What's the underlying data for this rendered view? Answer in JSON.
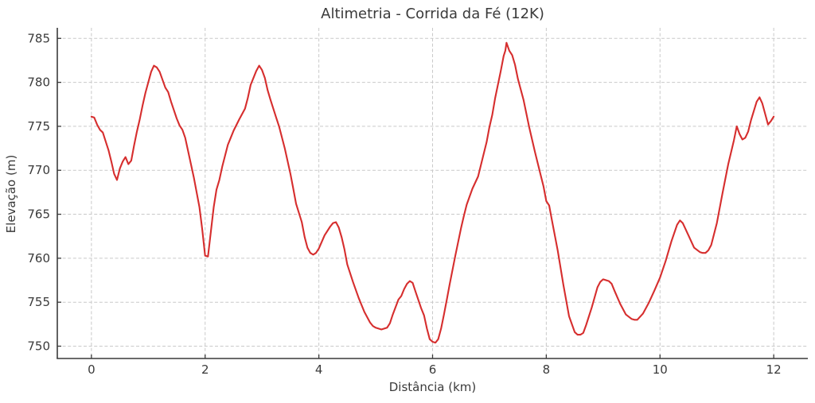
{
  "chart_data": {
    "type": "line",
    "title": "Altimetria - Corrida da Fé (12K)",
    "xlabel": "Distância (km)",
    "ylabel": "Elevação (m)",
    "xlim": [
      -0.6,
      12.6
    ],
    "ylim": [
      748.6,
      786.2
    ],
    "xticks": [
      0,
      2,
      4,
      6,
      8,
      10,
      12
    ],
    "yticks": [
      750,
      755,
      760,
      765,
      770,
      775,
      780,
      785
    ],
    "grid": true,
    "grid_style": "dashed",
    "legend": "none",
    "colors": {
      "line": "#d62e2e",
      "grid": "#c9c9c9",
      "spine": "#3a3a3a",
      "text": "#3a3a3a",
      "background": "#ffffff"
    },
    "series": [
      {
        "name": "elevation-profile",
        "points": [
          [
            0.0,
            776.1
          ],
          [
            0.05,
            776.0
          ],
          [
            0.1,
            775.2
          ],
          [
            0.15,
            774.6
          ],
          [
            0.2,
            774.3
          ],
          [
            0.25,
            773.3
          ],
          [
            0.3,
            772.3
          ],
          [
            0.35,
            771.0
          ],
          [
            0.4,
            769.6
          ],
          [
            0.45,
            768.9
          ],
          [
            0.5,
            770.2
          ],
          [
            0.55,
            771.0
          ],
          [
            0.6,
            771.5
          ],
          [
            0.65,
            770.7
          ],
          [
            0.7,
            771.1
          ],
          [
            0.75,
            772.8
          ],
          [
            0.8,
            774.4
          ],
          [
            0.85,
            775.8
          ],
          [
            0.9,
            777.4
          ],
          [
            0.95,
            778.8
          ],
          [
            1.0,
            780.0
          ],
          [
            1.05,
            781.2
          ],
          [
            1.1,
            781.9
          ],
          [
            1.15,
            781.7
          ],
          [
            1.2,
            781.2
          ],
          [
            1.3,
            779.4
          ],
          [
            1.35,
            778.9
          ],
          [
            1.4,
            777.8
          ],
          [
            1.5,
            775.9
          ],
          [
            1.55,
            775.1
          ],
          [
            1.6,
            774.6
          ],
          [
            1.65,
            773.7
          ],
          [
            1.7,
            772.2
          ],
          [
            1.8,
            769.2
          ],
          [
            1.9,
            765.8
          ],
          [
            1.95,
            763.2
          ],
          [
            2.0,
            760.3
          ],
          [
            2.05,
            760.2
          ],
          [
            2.1,
            763.0
          ],
          [
            2.15,
            765.8
          ],
          [
            2.2,
            767.8
          ],
          [
            2.25,
            768.9
          ],
          [
            2.3,
            770.4
          ],
          [
            2.4,
            772.9
          ],
          [
            2.45,
            773.7
          ],
          [
            2.5,
            774.5
          ],
          [
            2.6,
            775.8
          ],
          [
            2.7,
            777.0
          ],
          [
            2.75,
            778.2
          ],
          [
            2.8,
            779.7
          ],
          [
            2.9,
            781.3
          ],
          [
            2.95,
            781.9
          ],
          [
            3.0,
            781.4
          ],
          [
            3.05,
            780.5
          ],
          [
            3.1,
            779.1
          ],
          [
            3.15,
            778.0
          ],
          [
            3.25,
            776.0
          ],
          [
            3.3,
            775.0
          ],
          [
            3.4,
            772.5
          ],
          [
            3.5,
            769.6
          ],
          [
            3.55,
            767.9
          ],
          [
            3.6,
            766.2
          ],
          [
            3.7,
            764.1
          ],
          [
            3.75,
            762.4
          ],
          [
            3.8,
            761.2
          ],
          [
            3.85,
            760.6
          ],
          [
            3.9,
            760.4
          ],
          [
            3.95,
            760.6
          ],
          [
            4.0,
            761.1
          ],
          [
            4.1,
            762.6
          ],
          [
            4.2,
            763.6
          ],
          [
            4.25,
            764.0
          ],
          [
            4.3,
            764.1
          ],
          [
            4.35,
            763.5
          ],
          [
            4.4,
            762.4
          ],
          [
            4.45,
            761.0
          ],
          [
            4.5,
            759.3
          ],
          [
            4.6,
            757.3
          ],
          [
            4.7,
            755.5
          ],
          [
            4.8,
            753.9
          ],
          [
            4.9,
            752.7
          ],
          [
            4.95,
            752.3
          ],
          [
            5.0,
            752.1
          ],
          [
            5.1,
            751.9
          ],
          [
            5.2,
            752.1
          ],
          [
            5.25,
            752.6
          ],
          [
            5.3,
            753.6
          ],
          [
            5.4,
            755.3
          ],
          [
            5.45,
            755.7
          ],
          [
            5.5,
            756.5
          ],
          [
            5.55,
            757.1
          ],
          [
            5.6,
            757.4
          ],
          [
            5.65,
            757.2
          ],
          [
            5.7,
            756.2
          ],
          [
            5.8,
            754.3
          ],
          [
            5.85,
            753.5
          ],
          [
            5.9,
            752.0
          ],
          [
            5.95,
            750.8
          ],
          [
            6.0,
            750.5
          ],
          [
            6.05,
            750.4
          ],
          [
            6.1,
            750.8
          ],
          [
            6.15,
            752.0
          ],
          [
            6.2,
            753.6
          ],
          [
            6.25,
            755.3
          ],
          [
            6.3,
            757.0
          ],
          [
            6.4,
            760.3
          ],
          [
            6.5,
            763.4
          ],
          [
            6.55,
            764.8
          ],
          [
            6.6,
            766.1
          ],
          [
            6.7,
            767.9
          ],
          [
            6.8,
            769.3
          ],
          [
            6.9,
            771.9
          ],
          [
            6.95,
            773.2
          ],
          [
            7.0,
            774.9
          ],
          [
            7.05,
            776.3
          ],
          [
            7.1,
            778.2
          ],
          [
            7.2,
            781.3
          ],
          [
            7.25,
            783.0
          ],
          [
            7.28,
            783.6
          ],
          [
            7.3,
            784.5
          ],
          [
            7.35,
            783.6
          ],
          [
            7.4,
            783.1
          ],
          [
            7.45,
            782.0
          ],
          [
            7.5,
            780.4
          ],
          [
            7.6,
            778.0
          ],
          [
            7.7,
            774.9
          ],
          [
            7.8,
            772.1
          ],
          [
            7.9,
            769.5
          ],
          [
            7.95,
            768.2
          ],
          [
            8.0,
            766.5
          ],
          [
            8.05,
            766.0
          ],
          [
            8.1,
            764.3
          ],
          [
            8.2,
            760.9
          ],
          [
            8.3,
            757.0
          ],
          [
            8.4,
            753.4
          ],
          [
            8.5,
            751.6
          ],
          [
            8.55,
            751.3
          ],
          [
            8.6,
            751.3
          ],
          [
            8.65,
            751.5
          ],
          [
            8.7,
            752.4
          ],
          [
            8.8,
            754.4
          ],
          [
            8.9,
            756.7
          ],
          [
            8.95,
            757.3
          ],
          [
            9.0,
            757.6
          ],
          [
            9.1,
            757.4
          ],
          [
            9.15,
            757.1
          ],
          [
            9.2,
            756.3
          ],
          [
            9.3,
            754.8
          ],
          [
            9.4,
            753.6
          ],
          [
            9.5,
            753.1
          ],
          [
            9.55,
            753.0
          ],
          [
            9.6,
            753.0
          ],
          [
            9.7,
            753.7
          ],
          [
            9.8,
            754.9
          ],
          [
            9.9,
            756.3
          ],
          [
            10.0,
            757.8
          ],
          [
            10.1,
            759.7
          ],
          [
            10.2,
            761.9
          ],
          [
            10.3,
            763.8
          ],
          [
            10.35,
            764.3
          ],
          [
            10.4,
            764.0
          ],
          [
            10.5,
            762.6
          ],
          [
            10.6,
            761.2
          ],
          [
            10.7,
            760.7
          ],
          [
            10.75,
            760.6
          ],
          [
            10.8,
            760.6
          ],
          [
            10.85,
            760.9
          ],
          [
            10.9,
            761.5
          ],
          [
            11.0,
            764.0
          ],
          [
            11.1,
            767.4
          ],
          [
            11.2,
            770.7
          ],
          [
            11.3,
            773.4
          ],
          [
            11.35,
            775.0
          ],
          [
            11.4,
            774.1
          ],
          [
            11.45,
            773.5
          ],
          [
            11.5,
            773.7
          ],
          [
            11.55,
            774.4
          ],
          [
            11.6,
            775.7
          ],
          [
            11.7,
            777.8
          ],
          [
            11.75,
            778.3
          ],
          [
            11.8,
            777.6
          ],
          [
            11.85,
            776.4
          ],
          [
            11.9,
            775.2
          ],
          [
            11.95,
            775.6
          ],
          [
            12.0,
            776.1
          ]
        ]
      }
    ]
  }
}
